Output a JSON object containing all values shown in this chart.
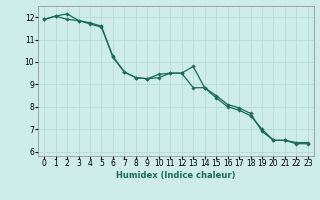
{
  "xlabel": "Humidex (Indice chaleur)",
  "ylabel": "",
  "background_color": "#ceecea",
  "grid_color": "#b8dbd8",
  "line_color": "#1a6b5a",
  "xlim": [
    -0.5,
    23.5
  ],
  "ylim": [
    5.8,
    12.5
  ],
  "xticks": [
    0,
    1,
    2,
    3,
    4,
    5,
    6,
    7,
    8,
    9,
    10,
    11,
    12,
    13,
    14,
    15,
    16,
    17,
    18,
    19,
    20,
    21,
    22,
    23
  ],
  "yticks": [
    6,
    7,
    8,
    9,
    10,
    11,
    12
  ],
  "line1_x": [
    0,
    1,
    2,
    3,
    4,
    5,
    6,
    7,
    8,
    9,
    10,
    11,
    12,
    13,
    14,
    15,
    16,
    17,
    18,
    19,
    20,
    21,
    22,
    23
  ],
  "line1_y": [
    11.9,
    12.05,
    12.15,
    11.85,
    11.75,
    11.6,
    10.2,
    9.55,
    9.3,
    9.25,
    9.3,
    9.5,
    9.5,
    9.8,
    8.85,
    8.5,
    8.1,
    7.95,
    7.7,
    6.9,
    6.5,
    6.5,
    6.4,
    6.4
  ],
  "line2_x": [
    0,
    1,
    2,
    3,
    4,
    5,
    6,
    7,
    8,
    9,
    10,
    11,
    12,
    13,
    14,
    15,
    16,
    17,
    18,
    19,
    20,
    21,
    22,
    23
  ],
  "line2_y": [
    11.9,
    12.05,
    11.9,
    11.85,
    11.7,
    11.55,
    10.25,
    9.55,
    9.3,
    9.25,
    9.45,
    9.5,
    9.5,
    8.85,
    8.85,
    8.4,
    8.0,
    7.85,
    7.6,
    7.0,
    6.5,
    6.5,
    6.35,
    6.35
  ],
  "tick_labelsize": 5.5,
  "xlabel_fontsize": 6.0
}
